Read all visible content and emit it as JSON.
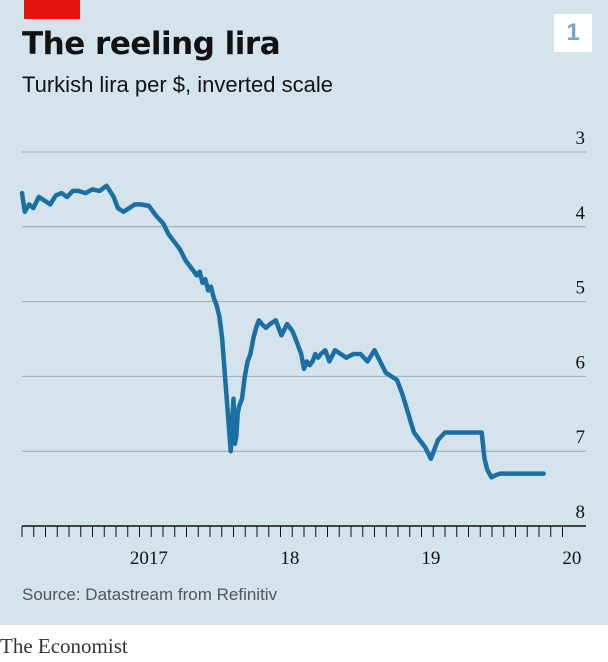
{
  "title": "The reeling lira",
  "subtitle": "Turkish lira per $, inverted scale",
  "figure_number": "1",
  "source": "Source: Datastream from Refinitiv",
  "brand": "The Economist",
  "colors": {
    "background": "#d4e3ec",
    "line": "#1a6fa3",
    "accent": "#e3120b"
  },
  "chart_data": {
    "type": "line",
    "title": "The reeling lira",
    "ylabel": "Turkish lira per $, inverted scale",
    "y_inverted": true,
    "ylim": [
      3,
      8
    ],
    "yticks": [
      3,
      4,
      5,
      6,
      7,
      8
    ],
    "ytick_labels": [
      "3",
      "4",
      "5",
      "6",
      "7",
      "8"
    ],
    "xlim": [
      2016.6,
      2020.6
    ],
    "xtick_labels": [
      {
        "label": "2017",
        "x": 2017.0
      },
      {
        "label": "18",
        "x": 2018.0
      },
      {
        "label": "19",
        "x": 2019.0
      },
      {
        "label": "20",
        "x": 2020.0
      }
    ],
    "grid": "horizontal",
    "series": [
      {
        "x": [
          2016.6,
          2016.62,
          2016.65,
          2016.68,
          2016.72,
          2016.76,
          2016.8,
          2016.84,
          2016.88,
          2016.92,
          2016.96,
          2017.0,
          2017.05,
          2017.1,
          2017.15,
          2017.2,
          2017.25,
          2017.28,
          2017.32,
          2017.36,
          2017.4,
          2017.44,
          2017.5,
          2017.55,
          2017.6,
          2017.64,
          2017.68,
          2017.72,
          2017.76,
          2017.8,
          2017.84,
          2017.86,
          2017.88,
          2017.9,
          2017.92,
          2017.94,
          2017.96,
          2017.98,
          2018.0,
          2018.02,
          2018.04,
          2018.06,
          2018.08,
          2018.09,
          2018.1,
          2018.11,
          2018.12,
          2018.13,
          2018.14,
          2018.16,
          2018.18,
          2018.2,
          2018.22,
          2018.24,
          2018.26,
          2018.28,
          2018.3,
          2018.33,
          2018.36,
          2018.4,
          2018.44,
          2018.48,
          2018.52,
          2018.55,
          2018.58,
          2018.6,
          2018.62,
          2018.64,
          2018.66,
          2018.68,
          2018.7,
          2018.72,
          2018.75,
          2018.78,
          2018.82,
          2018.86,
          2018.9,
          2018.95,
          2019.0,
          2019.05,
          2019.1,
          2019.14,
          2019.18,
          2019.22,
          2019.26,
          2019.3,
          2019.34,
          2019.38,
          2019.42,
          2019.46,
          2019.5,
          2019.55,
          2019.6,
          2019.64,
          2019.68,
          2019.72,
          2019.76,
          2019.8,
          2019.83,
          2019.86,
          2019.88,
          2019.9,
          2019.93,
          2019.96,
          2019.99,
          2020.02,
          2020.05,
          2020.08,
          2020.12,
          2020.16,
          2020.2,
          2020.24,
          2020.26,
          2020.28,
          2020.3
        ],
        "y": [
          3.55,
          3.8,
          3.7,
          3.75,
          3.6,
          3.65,
          3.7,
          3.58,
          3.55,
          3.6,
          3.52,
          3.52,
          3.55,
          3.5,
          3.52,
          3.45,
          3.6,
          3.75,
          3.8,
          3.75,
          3.7,
          3.7,
          3.72,
          3.85,
          3.95,
          4.1,
          4.2,
          4.3,
          4.45,
          4.55,
          4.65,
          4.6,
          4.75,
          4.7,
          4.85,
          4.8,
          4.95,
          5.05,
          5.2,
          5.5,
          6.0,
          6.5,
          7.0,
          6.6,
          6.3,
          6.9,
          6.8,
          6.5,
          6.4,
          6.3,
          6.0,
          5.8,
          5.7,
          5.5,
          5.35,
          5.25,
          5.3,
          5.35,
          5.3,
          5.25,
          5.45,
          5.3,
          5.4,
          5.55,
          5.7,
          5.9,
          5.8,
          5.85,
          5.8,
          5.7,
          5.75,
          5.7,
          5.65,
          5.8,
          5.65,
          5.7,
          5.75,
          5.7,
          5.7,
          5.8,
          5.65,
          5.8,
          5.95,
          6.0,
          6.05,
          6.25,
          6.5,
          6.75,
          6.85,
          6.95,
          7.1,
          6.85,
          6.75,
          6.75,
          6.75,
          6.75,
          6.75,
          6.75,
          6.75,
          6.75,
          7.1,
          7.25,
          7.35,
          7.32,
          7.3,
          7.3,
          7.3,
          7.3,
          7.3,
          7.3,
          7.3,
          7.3,
          7.3,
          7.3,
          7.3
        ]
      }
    ]
  }
}
